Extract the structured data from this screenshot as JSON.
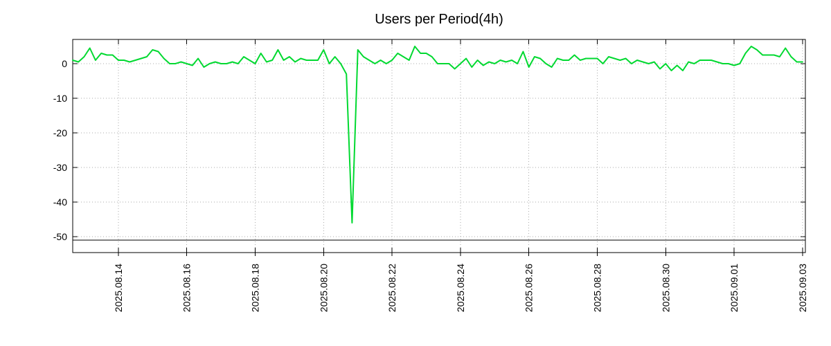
{
  "chart_data": {
    "type": "line",
    "title": "Users per Period(4h)",
    "line_color": "#00d930",
    "grid_color": "#aaaaaa",
    "border_color": "#000000",
    "background": "#ffffff",
    "legend": "none",
    "grid": "dotted",
    "ylabel": "",
    "xlabel": "",
    "ylim": [
      -54.6,
      7
    ],
    "y_ticks": [
      0,
      -10,
      -20,
      -30,
      -40,
      -50
    ],
    "baseline_value": -51,
    "period_hours": 4,
    "x_total_hours": 514,
    "x_tick_hours": [
      32,
      80,
      128,
      176,
      224,
      272,
      320,
      368,
      416,
      464,
      512
    ],
    "x_tick_labels": [
      "2025.08.14",
      "2025.08.16",
      "2025.08.18",
      "2025.08.20",
      "2025.08.22",
      "2025.08.24",
      "2025.08.26",
      "2025.08.28",
      "2025.08.30",
      "2025.09.01",
      "2025.09.03"
    ],
    "values": [
      1,
      0.5,
      2,
      4.5,
      1,
      3,
      2.5,
      2.5,
      1,
      1,
      0.5,
      1,
      1.5,
      2,
      4,
      3.5,
      1.5,
      0,
      0,
      0.5,
      0,
      -0.5,
      1.5,
      -1,
      0,
      0.5,
      0,
      0,
      0.5,
      0,
      2,
      1,
      0,
      3,
      0.5,
      1,
      4,
      1,
      2,
      0.5,
      1.5,
      1,
      1,
      1,
      4,
      0,
      2,
      0,
      -3,
      -46,
      4,
      2,
      1,
      0,
      1,
      0,
      1,
      3,
      2,
      1,
      5,
      3,
      3,
      2,
      0,
      0,
      0,
      -1.5,
      0,
      1.5,
      -1,
      1,
      -0.5,
      0.5,
      0,
      1,
      0.5,
      1,
      0,
      3.5,
      -1,
      2,
      1.5,
      0,
      -1,
      1.5,
      1,
      1,
      2.5,
      1,
      1.5,
      1.5,
      1.5,
      0,
      2,
      1.5,
      1,
      1.5,
      0,
      1,
      0.5,
      0,
      0.5,
      -1.5,
      0,
      -2,
      -0.5,
      -2,
      0.5,
      0,
      1,
      1,
      1,
      0.5,
      0,
      0,
      -0.5,
      0,
      3,
      5,
      4,
      2.5,
      2.5,
      2.5,
      2,
      4.5,
      2,
      0.5,
      0.5
    ]
  }
}
